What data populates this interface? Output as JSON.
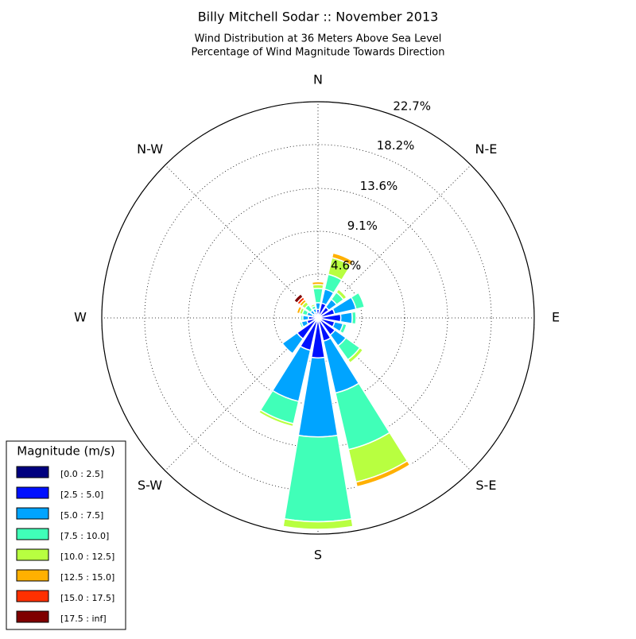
{
  "chart_data": {
    "type": "windrose",
    "title": "Billy Mitchell Sodar :: November 2013",
    "subtitle": [
      "Wind Distribution at 36 Meters Above Sea Level",
      "Percentage of Wind Magnitude Towards Direction"
    ],
    "categories": [
      "N",
      null,
      "N-E",
      null,
      "E",
      null,
      "S-E",
      null,
      "S",
      null,
      "S-W",
      null,
      "W",
      null,
      "N-W",
      null
    ],
    "ylim": [
      0,
      22.7
    ],
    "yticks": [
      {
        "value": 4.6,
        "label": "4.6%"
      },
      {
        "value": 9.1,
        "label": "9.1%"
      },
      {
        "value": 13.6,
        "label": "13.6%"
      },
      {
        "value": 18.2,
        "label": "18.2%"
      },
      {
        "value": 22.7,
        "label": "22.7%"
      }
    ],
    "grid": true,
    "legend_title": "Magnitude (m/s)",
    "legend": "lower left",
    "series": [
      {
        "name": "[0.0 : 2.5]",
        "color": "#00007f",
        "values": [
          0.1,
          0.2,
          0.2,
          0.3,
          0.3,
          0.2,
          0.2,
          0.3,
          0.3,
          0.3,
          0.2,
          0.2,
          0.2,
          0.1,
          0.1,
          0.1
        ]
      },
      {
        "name": "[2.5 : 5.0]",
        "color": "#0010ff",
        "values": [
          0.8,
          1.4,
          1.2,
          1.5,
          2.1,
          1.6,
          2.0,
          2.2,
          3.9,
          3.2,
          2.5,
          1.0,
          0.8,
          0.5,
          0.4,
          0.5
        ]
      },
      {
        "name": "[5.0 : 7.5]",
        "color": "#00a4ff",
        "values": [
          0.7,
          1.5,
          1.0,
          2.3,
          1.2,
          0.9,
          1.4,
          5.6,
          8.3,
          5.5,
          1.9,
          0.6,
          0.6,
          0.6,
          0.5,
          0.4
        ]
      },
      {
        "name": "[7.5 : 10.0]",
        "color": "#40ffb8",
        "values": [
          1.5,
          1.6,
          0.9,
          0.9,
          0.4,
          0.4,
          1.8,
          6.1,
          8.9,
          2.4,
          0,
          0.2,
          0.2,
          0.5,
          0.7,
          0.3
        ]
      },
      {
        "name": "[10.0 : 12.5]",
        "color": "#b8ff40",
        "values": [
          0.4,
          1.8,
          0.4,
          0,
          0,
          0.1,
          0.4,
          3.5,
          0.8,
          0.3,
          0,
          0,
          0,
          0.3,
          0.4,
          0.2
        ]
      },
      {
        "name": "[12.5 : 15.0]",
        "color": "#ffb000",
        "values": [
          0.3,
          0.5,
          0,
          0,
          0,
          0,
          0,
          0.5,
          0,
          0,
          0,
          0,
          0,
          0.3,
          0.3,
          0
        ]
      },
      {
        "name": "[15.0 : 17.5]",
        "color": "#ff3000",
        "values": [
          0,
          0,
          0,
          0,
          0,
          0,
          0,
          0,
          0,
          0,
          0,
          0,
          0,
          0,
          0.3,
          0
        ]
      },
      {
        "name": "[17.5 : inf]",
        "color": "#7f0000",
        "values": [
          0,
          0,
          0,
          0,
          0,
          0,
          0,
          0,
          0,
          0,
          0,
          0,
          0,
          0,
          0.4,
          0
        ]
      }
    ]
  }
}
